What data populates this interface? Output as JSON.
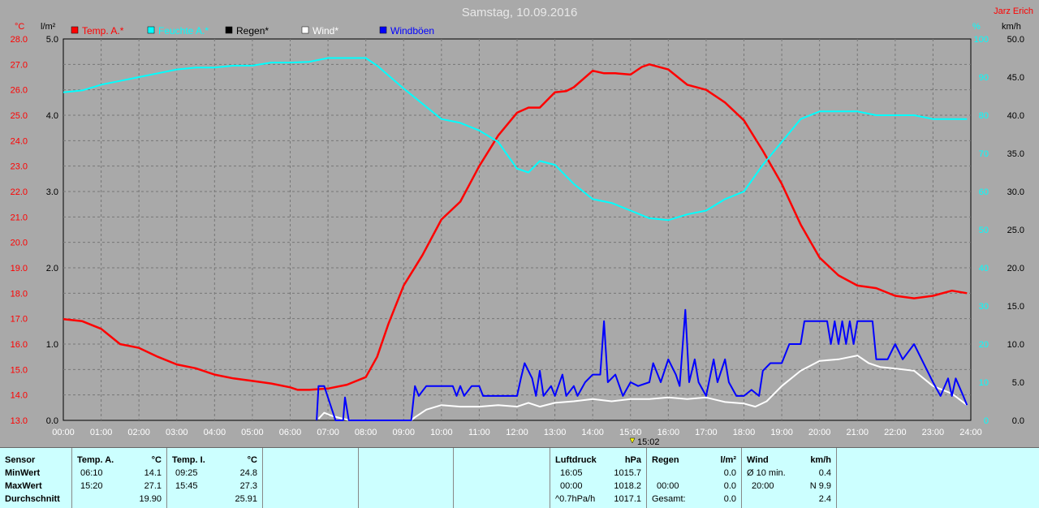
{
  "title": "Samstag, 10.09.2016",
  "station_name": "Jarz Erich",
  "cursor_time": "15:02",
  "chart_data": {
    "type": "line",
    "title": "Samstag, 10.09.2016",
    "legend": [
      {
        "name": "Temp. A.*",
        "color": "#ff0000"
      },
      {
        "name": "Feuchte A.*",
        "color": "#00ffff"
      },
      {
        "name": "Regen*",
        "color": "#000000"
      },
      {
        "name": "Wind*",
        "color": "#ffffff"
      },
      {
        "name": "Windböen",
        "color": "#0000ff"
      }
    ],
    "axes": {
      "temp": {
        "label": "°C",
        "ticks": [
          "28.0",
          "27.0",
          "26.0",
          "25.0",
          "24.0",
          "23.0",
          "22.0",
          "21.0",
          "20.0",
          "19.0",
          "18.0",
          "17.0",
          "16.0",
          "15.0",
          "14.0",
          "13.0"
        ],
        "range": [
          13,
          28
        ]
      },
      "rain": {
        "label": "l/m²",
        "ticks": [
          "5.0",
          "4.0",
          "3.0",
          "2.0",
          "1.0",
          "0.0"
        ],
        "range": [
          0,
          5
        ]
      },
      "humidity": {
        "label": "%",
        "ticks": [
          "100",
          "90",
          "80",
          "70",
          "60",
          "50",
          "40",
          "30",
          "20",
          "10",
          "0"
        ],
        "range": [
          0,
          100
        ]
      },
      "wind": {
        "label": "km/h",
        "ticks": [
          "50.0",
          "45.0",
          "40.0",
          "35.0",
          "30.0",
          "25.0",
          "20.0",
          "15.0",
          "10.0",
          "5.0",
          "0.0"
        ],
        "range": [
          0,
          50
        ]
      },
      "time": {
        "ticks": [
          "00:00",
          "01:00",
          "02:00",
          "03:00",
          "04:00",
          "05:00",
          "06:00",
          "07:00",
          "08:00",
          "09:00",
          "10:00",
          "11:00",
          "12:00",
          "13:00",
          "14:00",
          "15:00",
          "16:00",
          "17:00",
          "18:00",
          "19:00",
          "20:00",
          "21:00",
          "22:00",
          "23:00",
          "24:00"
        ],
        "range": [
          0,
          24
        ]
      }
    },
    "grid": true,
    "series": [
      {
        "name": "Temp. A.*",
        "axis": "temp",
        "color": "#ff0000",
        "points": [
          [
            0,
            16.98
          ],
          [
            0.5,
            16.9
          ],
          [
            1,
            16.6
          ],
          [
            1.5,
            16.0
          ],
          [
            2,
            15.85
          ],
          [
            2.5,
            15.5
          ],
          [
            3,
            15.2
          ],
          [
            3.5,
            15.05
          ],
          [
            4,
            14.8
          ],
          [
            4.5,
            14.65
          ],
          [
            5,
            14.55
          ],
          [
            5.5,
            14.45
          ],
          [
            6,
            14.3
          ],
          [
            6.2,
            14.2
          ],
          [
            6.5,
            14.2
          ],
          [
            7,
            14.25
          ],
          [
            7.5,
            14.4
          ],
          [
            8,
            14.7
          ],
          [
            8.3,
            15.5
          ],
          [
            8.6,
            16.8
          ],
          [
            9,
            18.3
          ],
          [
            9.5,
            19.5
          ],
          [
            10,
            20.9
          ],
          [
            10.5,
            21.6
          ],
          [
            11,
            23.0
          ],
          [
            11.5,
            24.2
          ],
          [
            12,
            25.1
          ],
          [
            12.3,
            25.3
          ],
          [
            12.6,
            25.3
          ],
          [
            13,
            25.9
          ],
          [
            13.3,
            25.95
          ],
          [
            13.5,
            26.1
          ],
          [
            14,
            26.75
          ],
          [
            14.3,
            26.65
          ],
          [
            14.6,
            26.65
          ],
          [
            15,
            26.6
          ],
          [
            15.3,
            26.9
          ],
          [
            15.5,
            27.0
          ],
          [
            16,
            26.8
          ],
          [
            16.5,
            26.2
          ],
          [
            17,
            26.0
          ],
          [
            17.5,
            25.5
          ],
          [
            18,
            24.8
          ],
          [
            18.5,
            23.6
          ],
          [
            19,
            22.3
          ],
          [
            19.5,
            20.7
          ],
          [
            20,
            19.4
          ],
          [
            20.5,
            18.7
          ],
          [
            21,
            18.3
          ],
          [
            21.5,
            18.2
          ],
          [
            22,
            17.9
          ],
          [
            22.5,
            17.8
          ],
          [
            23,
            17.9
          ],
          [
            23.5,
            18.1
          ],
          [
            23.9,
            18.0
          ]
        ]
      },
      {
        "name": "Feuchte A.*",
        "axis": "humidity",
        "color": "#00ffff",
        "points": [
          [
            0,
            86
          ],
          [
            0.5,
            86.5
          ],
          [
            1,
            88
          ],
          [
            1.5,
            89
          ],
          [
            2,
            90
          ],
          [
            2.5,
            91
          ],
          [
            3,
            92
          ],
          [
            3.5,
            92.5
          ],
          [
            4,
            92.5
          ],
          [
            4.5,
            93
          ],
          [
            5,
            93
          ],
          [
            5.5,
            93.8
          ],
          [
            6,
            93.8
          ],
          [
            6.5,
            94
          ],
          [
            7,
            95
          ],
          [
            7.5,
            95
          ],
          [
            8,
            95
          ],
          [
            8.3,
            93
          ],
          [
            9,
            87
          ],
          [
            9.5,
            83
          ],
          [
            10,
            79
          ],
          [
            10.5,
            78
          ],
          [
            11,
            76
          ],
          [
            11.5,
            73
          ],
          [
            12,
            66
          ],
          [
            12.3,
            65
          ],
          [
            12.6,
            68
          ],
          [
            13,
            67
          ],
          [
            13.5,
            62
          ],
          [
            14,
            58
          ],
          [
            14.5,
            57
          ],
          [
            15,
            55
          ],
          [
            15.5,
            53
          ],
          [
            16,
            52.5
          ],
          [
            16.5,
            54
          ],
          [
            17,
            55
          ],
          [
            17.5,
            58
          ],
          [
            18,
            60
          ],
          [
            18.5,
            67
          ],
          [
            19,
            73
          ],
          [
            19.5,
            79
          ],
          [
            20,
            81
          ],
          [
            20.5,
            81
          ],
          [
            21,
            81
          ],
          [
            21.5,
            80
          ],
          [
            22,
            80
          ],
          [
            22.5,
            80
          ],
          [
            23,
            79
          ],
          [
            23.5,
            79
          ],
          [
            23.9,
            79
          ]
        ]
      },
      {
        "name": "Wind*",
        "axis": "wind",
        "color": "#ffffff",
        "points": [
          [
            6.75,
            0.2
          ],
          [
            6.9,
            1.0
          ],
          [
            7.1,
            0.6
          ],
          [
            7.4,
            0.2
          ],
          [
            7.6,
            0
          ],
          [
            9.2,
            0
          ],
          [
            9.3,
            0.4
          ],
          [
            9.6,
            1.4
          ],
          [
            10,
            2.0
          ],
          [
            10.5,
            1.8
          ],
          [
            11,
            1.8
          ],
          [
            11.5,
            2.0
          ],
          [
            12,
            1.8
          ],
          [
            12.3,
            2.3
          ],
          [
            12.6,
            1.8
          ],
          [
            13,
            2.3
          ],
          [
            13.5,
            2.5
          ],
          [
            14,
            2.8
          ],
          [
            14.5,
            2.5
          ],
          [
            15,
            2.8
          ],
          [
            15.5,
            2.8
          ],
          [
            16,
            3.0
          ],
          [
            16.5,
            2.8
          ],
          [
            17,
            3.0
          ],
          [
            17.5,
            2.4
          ],
          [
            18,
            2.2
          ],
          [
            18.3,
            1.8
          ],
          [
            18.6,
            2.5
          ],
          [
            19,
            4.5
          ],
          [
            19.5,
            6.5
          ],
          [
            20,
            7.8
          ],
          [
            20.5,
            8.0
          ],
          [
            21,
            8.5
          ],
          [
            21.3,
            7.5
          ],
          [
            21.6,
            7.0
          ],
          [
            22,
            6.8
          ],
          [
            22.5,
            6.5
          ],
          [
            23,
            4.5
          ],
          [
            23.5,
            3.5
          ],
          [
            23.9,
            2.0
          ]
        ]
      },
      {
        "name": "Windböen",
        "axis": "wind",
        "color": "#0000ff",
        "points": [
          [
            6.7,
            0
          ],
          [
            6.75,
            4.5
          ],
          [
            6.9,
            4.5
          ],
          [
            7.1,
            1.5
          ],
          [
            7.2,
            0
          ],
          [
            7.4,
            0
          ],
          [
            7.45,
            3
          ],
          [
            7.55,
            0
          ],
          [
            7.6,
            0
          ],
          [
            9.2,
            0
          ],
          [
            9.3,
            4.5
          ],
          [
            9.4,
            3.2
          ],
          [
            9.6,
            4.5
          ],
          [
            10,
            4.5
          ],
          [
            10.3,
            4.5
          ],
          [
            10.4,
            3.2
          ],
          [
            10.5,
            4.5
          ],
          [
            10.6,
            3.2
          ],
          [
            10.8,
            4.5
          ],
          [
            11,
            4.5
          ],
          [
            11.1,
            3.2
          ],
          [
            12,
            3.2
          ],
          [
            12.1,
            5.5
          ],
          [
            12.2,
            7.5
          ],
          [
            12.4,
            5.5
          ],
          [
            12.5,
            3.2
          ],
          [
            12.6,
            6.5
          ],
          [
            12.7,
            3.2
          ],
          [
            12.9,
            4.5
          ],
          [
            13,
            3.2
          ],
          [
            13.2,
            6
          ],
          [
            13.3,
            3.2
          ],
          [
            13.5,
            4.5
          ],
          [
            13.6,
            3.2
          ],
          [
            13.8,
            5
          ],
          [
            14,
            6
          ],
          [
            14.2,
            6
          ],
          [
            14.3,
            13
          ],
          [
            14.4,
            5
          ],
          [
            14.6,
            6
          ],
          [
            14.8,
            3.2
          ],
          [
            15,
            5
          ],
          [
            15.2,
            4.5
          ],
          [
            15.5,
            5
          ],
          [
            15.6,
            7.5
          ],
          [
            15.8,
            5
          ],
          [
            16,
            8
          ],
          [
            16.2,
            6
          ],
          [
            16.3,
            4.5
          ],
          [
            16.45,
            14.5
          ],
          [
            16.55,
            5
          ],
          [
            16.7,
            8
          ],
          [
            16.8,
            5
          ],
          [
            17,
            3.2
          ],
          [
            17.2,
            8
          ],
          [
            17.3,
            5
          ],
          [
            17.5,
            8
          ],
          [
            17.6,
            5
          ],
          [
            17.8,
            3.2
          ],
          [
            18,
            3.2
          ],
          [
            18.2,
            4
          ],
          [
            18.4,
            3.2
          ],
          [
            18.5,
            6.5
          ],
          [
            18.7,
            7.5
          ],
          [
            19,
            7.5
          ],
          [
            19.2,
            10
          ],
          [
            19.5,
            10
          ],
          [
            19.6,
            13
          ],
          [
            19.8,
            13
          ],
          [
            20.2,
            13
          ],
          [
            20.3,
            10
          ],
          [
            20.4,
            13
          ],
          [
            20.5,
            10
          ],
          [
            20.6,
            13
          ],
          [
            20.7,
            10
          ],
          [
            20.8,
            13
          ],
          [
            20.9,
            10
          ],
          [
            21,
            13
          ],
          [
            21.4,
            13
          ],
          [
            21.5,
            8
          ],
          [
            21.8,
            8
          ],
          [
            22,
            10
          ],
          [
            22.2,
            8
          ],
          [
            22.5,
            10
          ],
          [
            22.7,
            8
          ],
          [
            23,
            5
          ],
          [
            23.2,
            3.2
          ],
          [
            23.4,
            5.5
          ],
          [
            23.5,
            3.2
          ],
          [
            23.6,
            5.5
          ],
          [
            23.8,
            3.2
          ],
          [
            23.9,
            2
          ]
        ]
      }
    ]
  },
  "stats": {
    "sensor": {
      "header": "Sensor",
      "min": "MinWert",
      "max": "MaxWert",
      "avg": "Durchschnitt"
    },
    "temp_a": {
      "header": "Temp. A.",
      "unit": "°C",
      "min_time": "06:10",
      "min_val": "14.1",
      "max_time": "15:20",
      "max_val": "27.1",
      "avg_val": "19.90"
    },
    "temp_i": {
      "header": "Temp. I.",
      "unit": "°C",
      "min_time": "09:25",
      "min_val": "24.8",
      "max_time": "15:45",
      "max_val": "27.3",
      "avg_val": "25.91"
    },
    "pressure": {
      "header": "Luftdruck",
      "unit": "hPa",
      "min_time": "16:05",
      "min_val": "1015.7",
      "max_time": "00:00",
      "max_val": "1018.2",
      "trend_label": "^0.7hPa/h",
      "trend_val": "1017.1"
    },
    "rain": {
      "header": "Regen",
      "unit": "l/m²",
      "r1_time": "",
      "r1_val": "0.0",
      "r2_time": "00:00",
      "r2_val": "0.0",
      "total_label": "Gesamt:",
      "total_val": "0.0"
    },
    "wind": {
      "header": "Wind",
      "unit": "km/h",
      "avg_label": "Ø 10 min.",
      "avg_val": "0.4",
      "max_time": "20:00",
      "max_val": "N 9.9",
      "r3_val": "2.4"
    }
  }
}
